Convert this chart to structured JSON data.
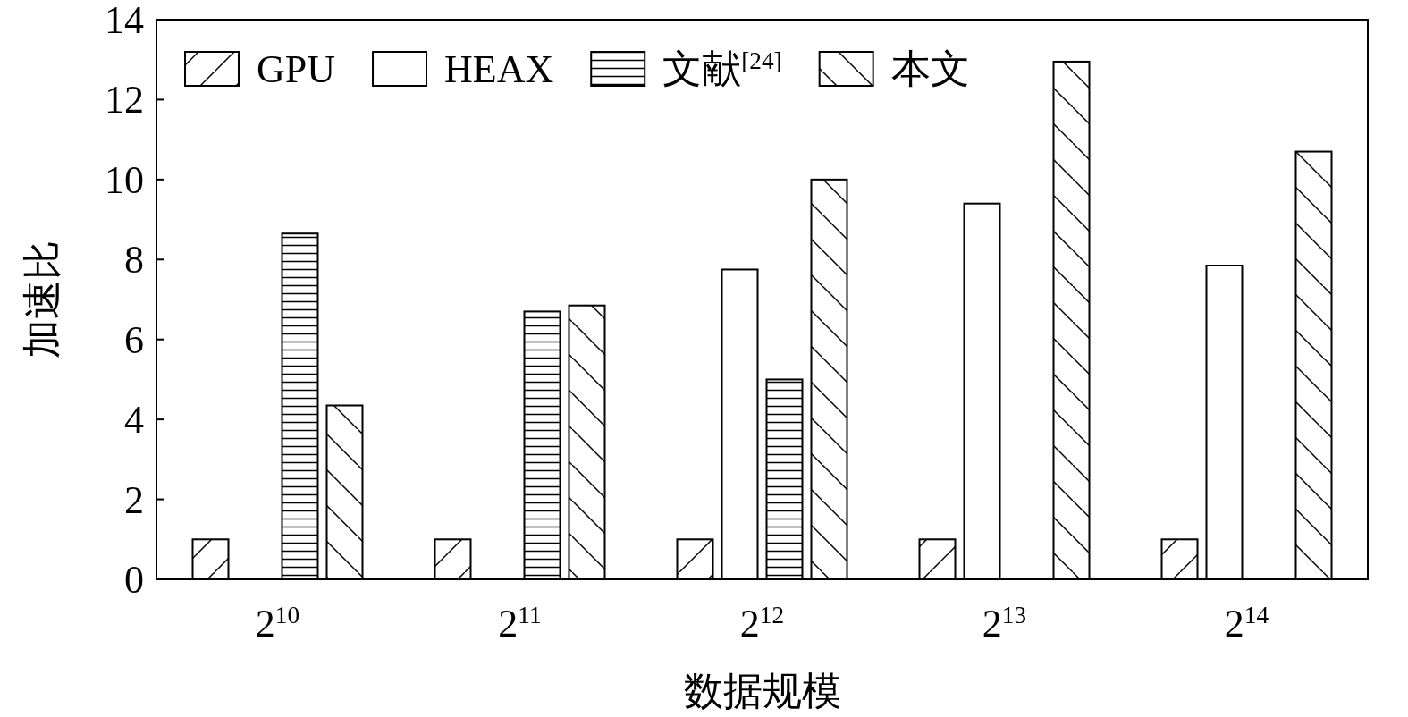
{
  "chart_data": {
    "type": "bar",
    "xlabel": "数据规模",
    "ylabel": "加速比",
    "categories": [
      "2$^{10}$",
      "2$^{11}$",
      "2$^{12}$",
      "2$^{13}$",
      "2$^{14}$"
    ],
    "series": [
      {
        "name": "GPU",
        "color": "#000000",
        "values": [
          1,
          1,
          1,
          1,
          1
        ]
      },
      {
        "name": "HEAX",
        "color": "#000000",
        "values": [
          null,
          null,
          7.75,
          9.4,
          7.85
        ]
      },
      {
        "name": "文献$^{[24]}$",
        "color": "#000000",
        "values": [
          8.65,
          6.7,
          5.0,
          null,
          null
        ]
      },
      {
        "name": "本文",
        "color": "#000000",
        "values": [
          4.35,
          6.85,
          10.0,
          12.95,
          10.7
        ]
      }
    ],
    "ylim": [
      0,
      14
    ],
    "yticks": [
      0,
      2,
      4,
      6,
      8,
      10,
      12,
      14
    ],
    "grid": false,
    "legend": "top left"
  }
}
